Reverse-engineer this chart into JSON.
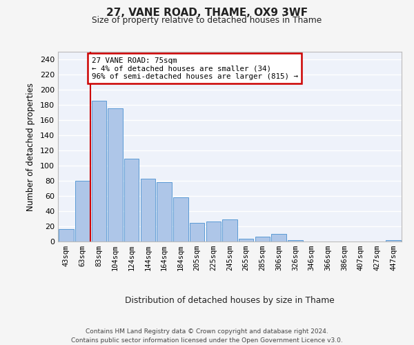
{
  "title1": "27, VANE ROAD, THAME, OX9 3WF",
  "title2": "Size of property relative to detached houses in Thame",
  "xlabel": "Distribution of detached houses by size in Thame",
  "ylabel": "Number of detached properties",
  "categories": [
    "43sqm",
    "63sqm",
    "83sqm",
    "104sqm",
    "124sqm",
    "144sqm",
    "164sqm",
    "184sqm",
    "205sqm",
    "225sqm",
    "245sqm",
    "265sqm",
    "285sqm",
    "306sqm",
    "326sqm",
    "346sqm",
    "366sqm",
    "386sqm",
    "407sqm",
    "427sqm",
    "447sqm"
  ],
  "values": [
    16,
    80,
    185,
    175,
    109,
    83,
    78,
    58,
    25,
    26,
    29,
    4,
    6,
    10,
    2,
    0,
    0,
    0,
    0,
    0,
    2
  ],
  "bar_color": "#aec6e8",
  "bar_edge_color": "#5b9bd5",
  "background_color": "#eef2fa",
  "grid_color": "#ffffff",
  "vline_color": "#cc0000",
  "annotation_text": "27 VANE ROAD: 75sqm\n← 4% of detached houses are smaller (34)\n96% of semi-detached houses are larger (815) →",
  "annotation_box_color": "#ffffff",
  "annotation_box_edge": "#cc0000",
  "footer": "Contains HM Land Registry data © Crown copyright and database right 2024.\nContains public sector information licensed under the Open Government Licence v3.0.",
  "ylim": [
    0,
    250
  ],
  "yticks": [
    0,
    20,
    40,
    60,
    80,
    100,
    120,
    140,
    160,
    180,
    200,
    220,
    240
  ],
  "fig_bg": "#f5f5f5"
}
